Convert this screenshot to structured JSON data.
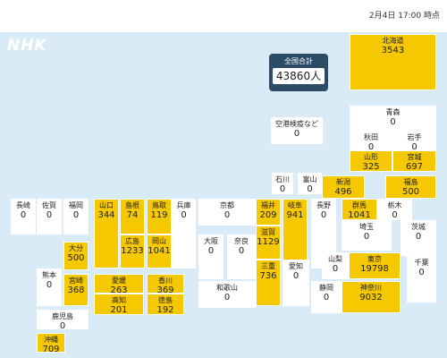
{
  "header": {
    "timestamp": "2月4日 17:00 時点",
    "logo": "NHK"
  },
  "national_total": {
    "label": "全国合計",
    "value": "43860人"
  },
  "prefectures": [
    {
      "name": "北海道",
      "count": "3543",
      "color": "yellow"
    },
    {
      "name": "空港検疫など",
      "count": "0",
      "color": "white"
    },
    {
      "name": "青森",
      "count": "0",
      "color": "white"
    },
    {
      "name": "秋田",
      "count": "0",
      "color": "white"
    },
    {
      "name": "岩手",
      "count": "0",
      "color": "white"
    },
    {
      "name": "山形",
      "count": "325",
      "color": "yellow"
    },
    {
      "name": "宮城",
      "count": "697",
      "color": "yellow"
    },
    {
      "name": "石川",
      "count": "0",
      "color": "white"
    },
    {
      "name": "富山",
      "count": "0",
      "color": "white"
    },
    {
      "name": "新潟",
      "count": "496",
      "color": "yellow"
    },
    {
      "name": "福島",
      "count": "500",
      "color": "yellow"
    },
    {
      "name": "長崎",
      "count": "0",
      "color": "white"
    },
    {
      "name": "佐賀",
      "count": "0",
      "color": "white"
    },
    {
      "name": "福岡",
      "count": "0",
      "color": "white"
    },
    {
      "name": "山口",
      "count": "344",
      "color": "yellow"
    },
    {
      "name": "島根",
      "count": "74",
      "color": "yellow"
    },
    {
      "name": "鳥取",
      "count": "119",
      "color": "yellow"
    },
    {
      "name": "兵庫",
      "count": "0",
      "color": "white"
    },
    {
      "name": "京都",
      "count": "0",
      "color": "white"
    },
    {
      "name": "福井",
      "count": "209",
      "color": "yellow"
    },
    {
      "name": "岐阜",
      "count": "941",
      "color": "yellow"
    },
    {
      "name": "長野",
      "count": "0",
      "color": "white"
    },
    {
      "name": "群馬",
      "count": "1041",
      "color": "yellow"
    },
    {
      "name": "栃木",
      "count": "0",
      "color": "white"
    },
    {
      "name": "茨城",
      "count": "0",
      "color": "white"
    },
    {
      "name": "広島",
      "count": "1233",
      "color": "yellow"
    },
    {
      "name": "岡山",
      "count": "1041",
      "color": "yellow"
    },
    {
      "name": "大阪",
      "count": "0",
      "color": "white"
    },
    {
      "name": "奈良",
      "count": "0",
      "color": "white"
    },
    {
      "name": "滋賀",
      "count": "1129",
      "color": "yellow"
    },
    {
      "name": "埼玉",
      "count": "0",
      "color": "white"
    },
    {
      "name": "大分",
      "count": "500",
      "color": "yellow"
    },
    {
      "name": "熊本",
      "count": "0",
      "color": "white"
    },
    {
      "name": "宮崎",
      "count": "368",
      "color": "yellow"
    },
    {
      "name": "愛媛",
      "count": "263",
      "color": "yellow"
    },
    {
      "name": "香川",
      "count": "369",
      "color": "yellow"
    },
    {
      "name": "高知",
      "count": "201",
      "color": "yellow"
    },
    {
      "name": "徳島",
      "count": "192",
      "color": "yellow"
    },
    {
      "name": "和歌山",
      "count": "0",
      "color": "white"
    },
    {
      "name": "三重",
      "count": "736",
      "color": "yellow"
    },
    {
      "name": "愛知",
      "count": "0",
      "color": "white"
    },
    {
      "name": "山梨",
      "count": "0",
      "color": "white"
    },
    {
      "name": "東京",
      "count": "19798",
      "color": "yellow"
    },
    {
      "name": "千葉",
      "count": "0",
      "color": "white"
    },
    {
      "name": "静岡",
      "count": "0",
      "color": "white"
    },
    {
      "name": "神奈川",
      "count": "9032",
      "color": "yellow"
    },
    {
      "name": "鹿児島",
      "count": "0",
      "color": "white"
    },
    {
      "name": "沖縄",
      "count": "709",
      "color": "yellow"
    }
  ]
}
